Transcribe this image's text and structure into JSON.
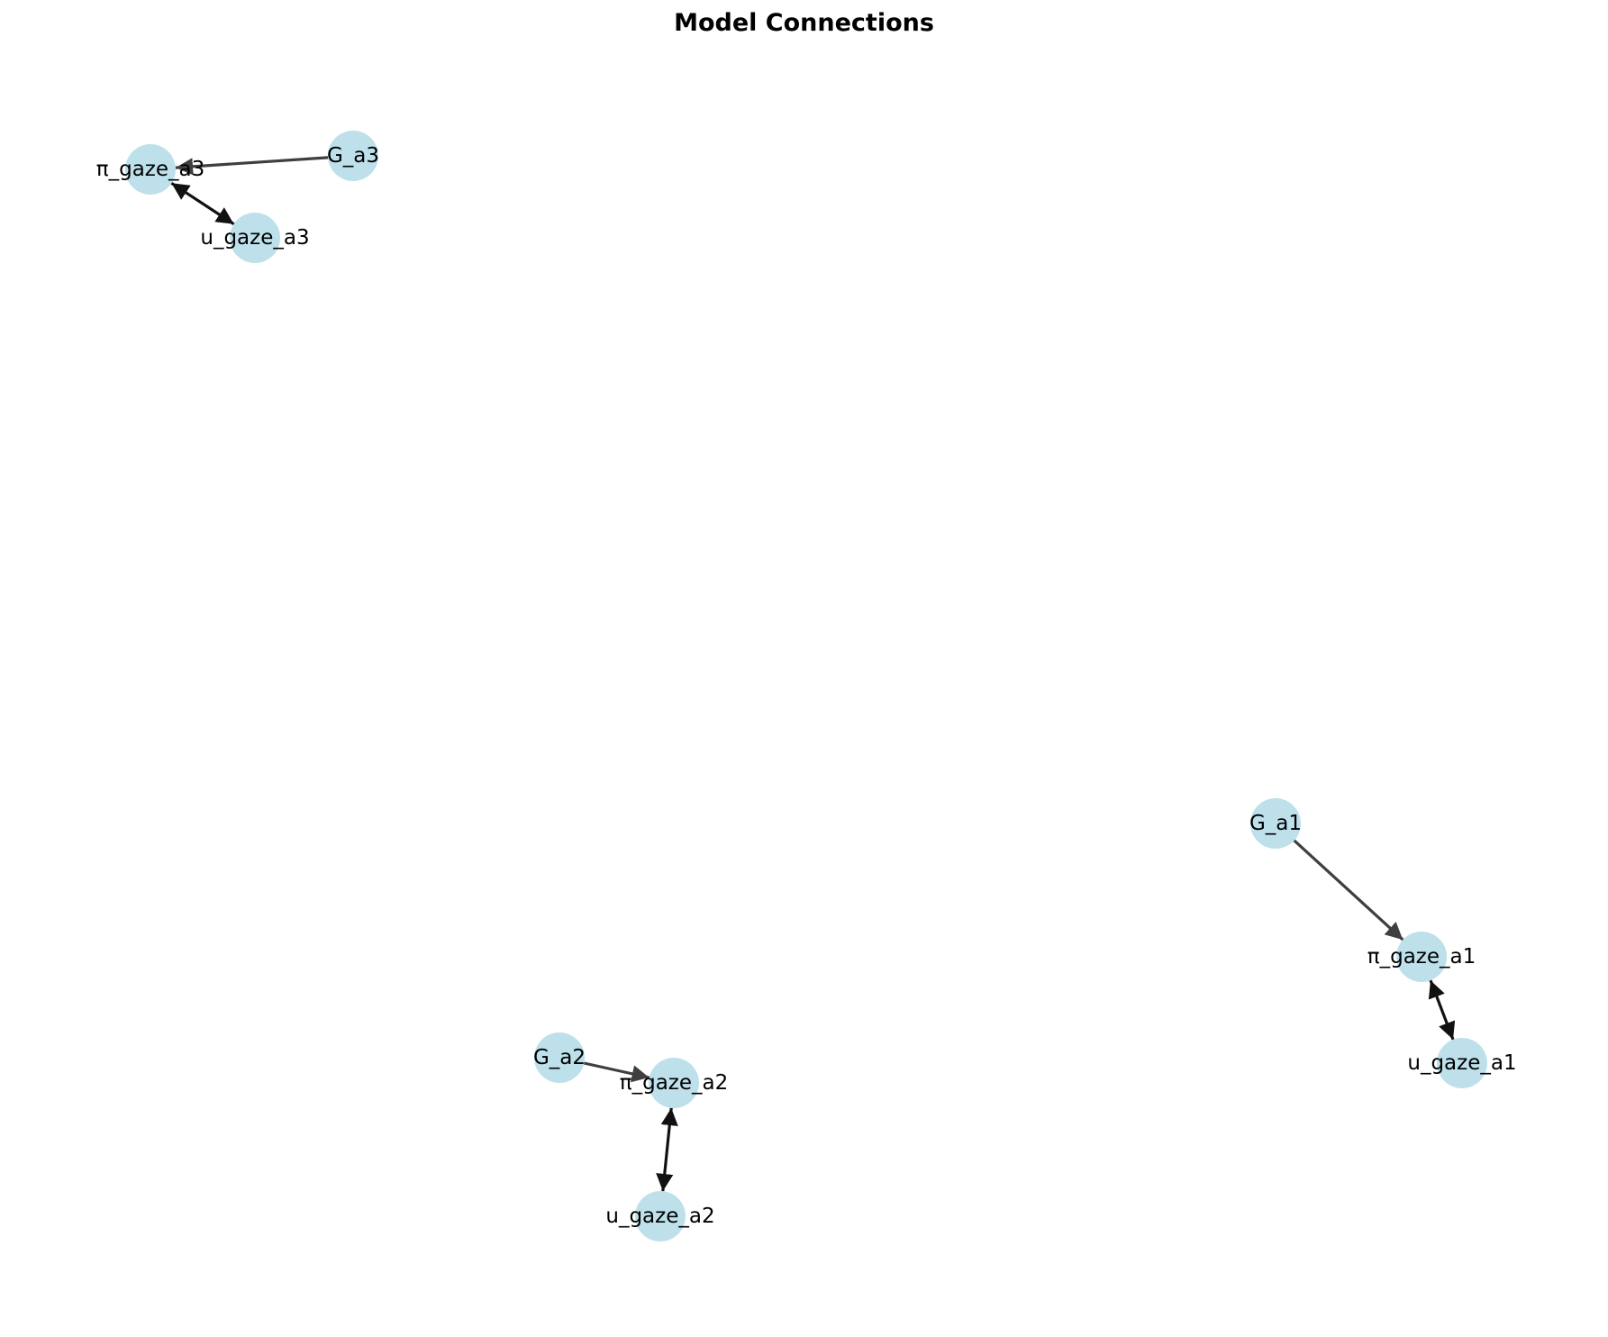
{
  "title": "Model Connections",
  "colors": {
    "node_fill": "#add8e6",
    "edge_directed": "#3f3f3f",
    "edge_bidirectional": "#111111",
    "background": "#ffffff"
  },
  "nodes": [
    {
      "id": "G_a3",
      "label": "G_a3"
    },
    {
      "id": "pi_gaze_a3",
      "label": "π_gaze_a3"
    },
    {
      "id": "u_gaze_a3",
      "label": "u_gaze_a3"
    },
    {
      "id": "G_a1",
      "label": "G_a1"
    },
    {
      "id": "pi_gaze_a1",
      "label": "π_gaze_a1"
    },
    {
      "id": "u_gaze_a1",
      "label": "u_gaze_a1"
    },
    {
      "id": "G_a2",
      "label": "G_a2"
    },
    {
      "id": "pi_gaze_a2",
      "label": "π_gaze_a2"
    },
    {
      "id": "u_gaze_a2",
      "label": "u_gaze_a2"
    }
  ],
  "edges": [
    {
      "source": "G_a3",
      "target": "pi_gaze_a3",
      "bidirectional": false
    },
    {
      "source": "pi_gaze_a3",
      "target": "u_gaze_a3",
      "bidirectional": true
    },
    {
      "source": "G_a1",
      "target": "pi_gaze_a1",
      "bidirectional": false
    },
    {
      "source": "pi_gaze_a1",
      "target": "u_gaze_a1",
      "bidirectional": true
    },
    {
      "source": "G_a2",
      "target": "pi_gaze_a2",
      "bidirectional": false
    },
    {
      "source": "pi_gaze_a2",
      "target": "u_gaze_a2",
      "bidirectional": true
    }
  ]
}
